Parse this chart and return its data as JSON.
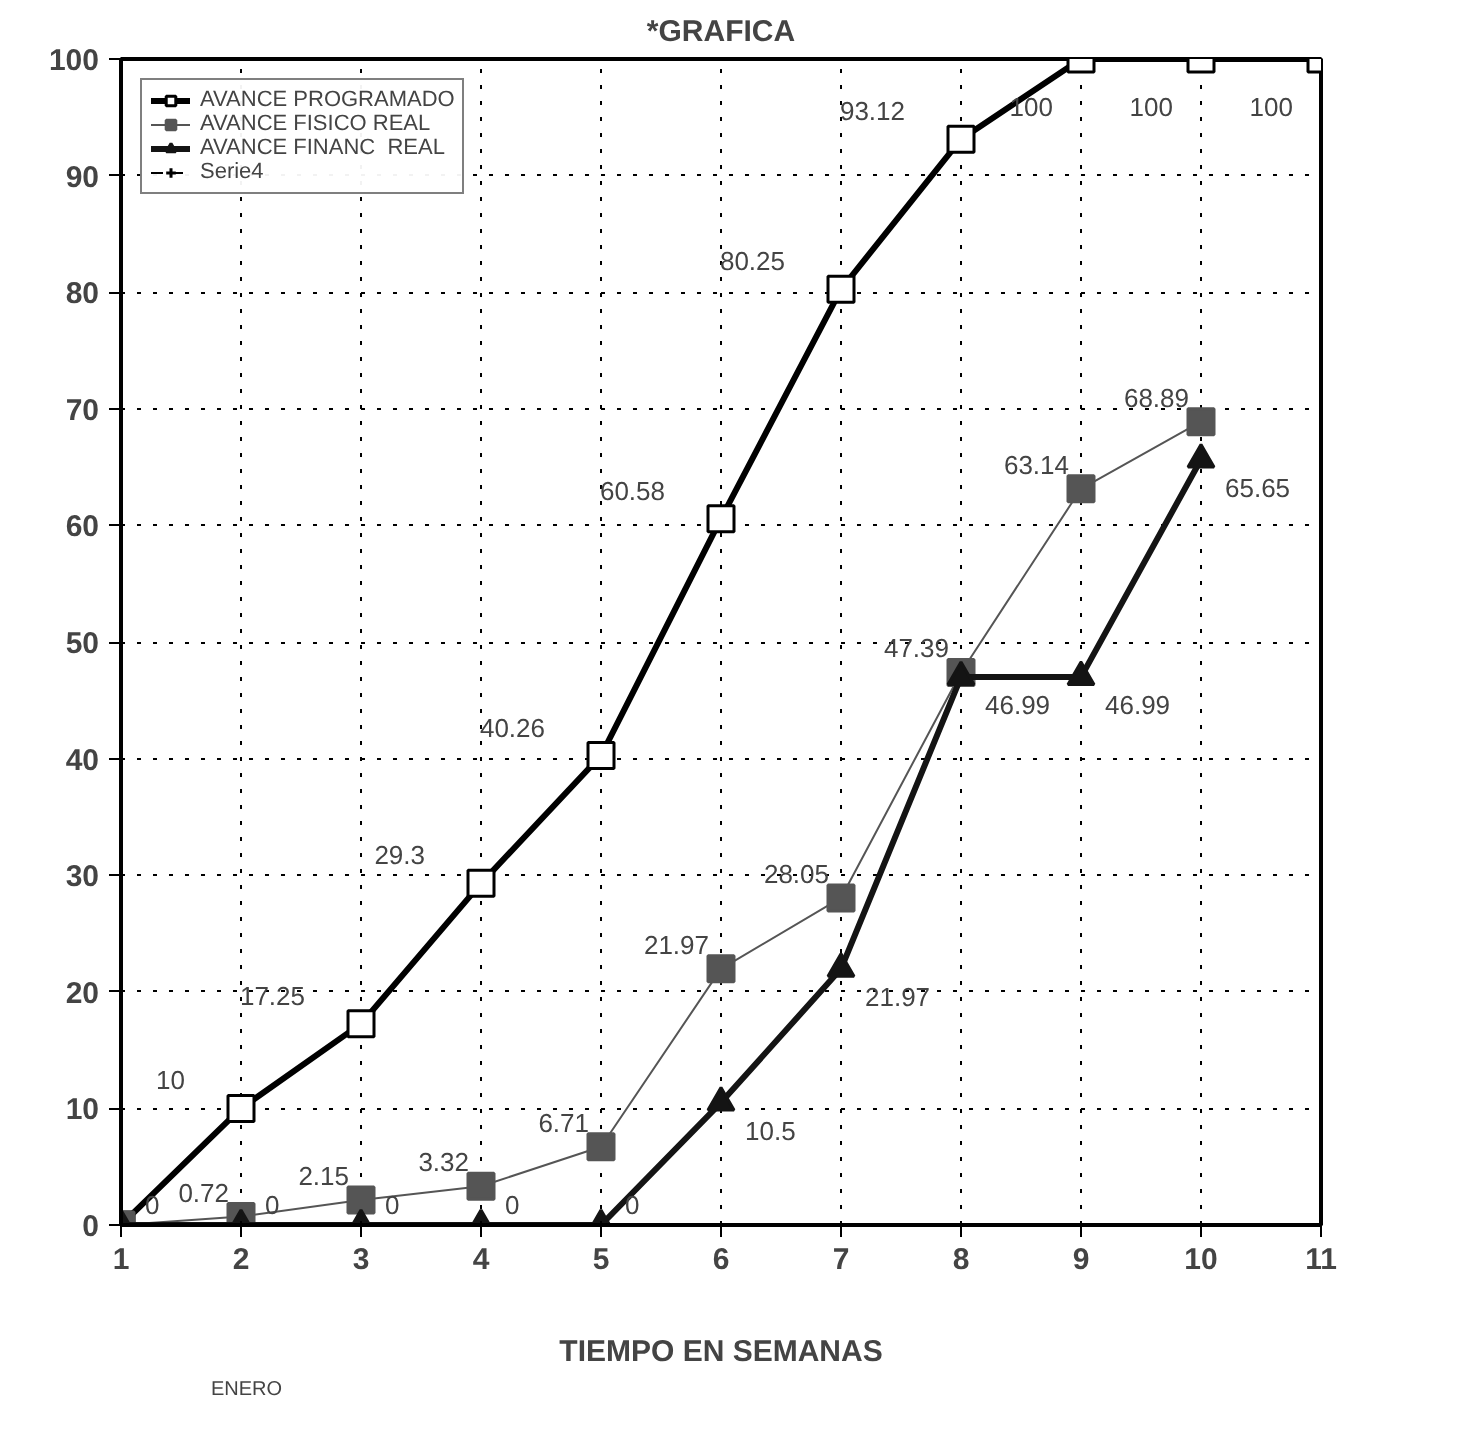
{
  "chart_data": {
    "type": "line",
    "title": "*GRAFICA",
    "xlabel": "TIEMPO EN SEMANAS",
    "x": [
      1,
      2,
      3,
      4,
      5,
      6,
      7,
      8,
      9,
      10,
      11
    ],
    "xlim": [
      1,
      11
    ],
    "xticks": [
      1,
      2,
      3,
      4,
      5,
      6,
      7,
      8,
      9,
      10,
      11
    ],
    "ylim": [
      0,
      100
    ],
    "yticks": [
      0,
      10,
      20,
      30,
      40,
      50,
      60,
      70,
      80,
      90,
      100
    ],
    "grid": true,
    "legend": "top left",
    "line_style": "solid",
    "annotations": [
      "ENERO"
    ],
    "series": [
      {
        "name": "AVANCE PROGRAMADO",
        "color": "#000000",
        "marker": "square",
        "values": [
          0,
          10,
          17.25,
          29.3,
          40.26,
          60.58,
          80.25,
          93.12,
          100,
          100,
          100
        ],
        "value_labels": [
          null,
          "10",
          "17.25",
          "29.3",
          "40.26",
          "60.58",
          "80.25",
          "93.12",
          "100",
          "100",
          "100"
        ]
      },
      {
        "name": "AVANCE FISICO REAL",
        "color": "#555555",
        "marker": "square",
        "values": [
          0,
          0.72,
          2.15,
          3.32,
          6.71,
          21.97,
          28.05,
          47.39,
          63.14,
          68.89,
          null
        ],
        "value_labels": [
          null,
          "0.72",
          "2.15",
          "3.32",
          "6.71",
          "21.97",
          "28.05",
          "47.39",
          "63.14",
          "68.89",
          null
        ]
      },
      {
        "name": "AVANCE FINANC  REAL",
        "color": "#141414",
        "marker": "triangle",
        "values": [
          0,
          0,
          0,
          0,
          0,
          10.5,
          21.97,
          46.99,
          46.99,
          65.65,
          null
        ],
        "value_labels": [
          "0",
          "0",
          "0",
          "0",
          "0",
          "10.5",
          "21.97",
          "46.99",
          "46.99",
          "65.65",
          null
        ]
      },
      {
        "name": "Serie4",
        "color": "#000000",
        "marker": "cross",
        "line_style": "dashed",
        "values": [
          null,
          null,
          null,
          null,
          null,
          null,
          null,
          null,
          null,
          null,
          null
        ]
      }
    ]
  }
}
